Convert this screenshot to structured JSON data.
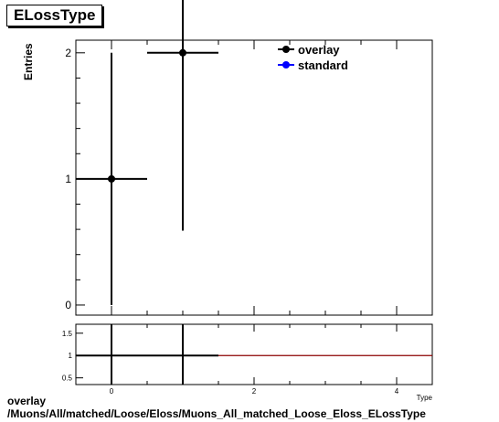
{
  "title": "ELossType",
  "footer": {
    "line1": "overlay",
    "line2": "/Muons/All/matched/Loose/Eloss/Muons_All_matched_Loose_Eloss_ELossType"
  },
  "chart_data": [
    {
      "type": "scatter",
      "title": "ELossType",
      "ylabel": "Entries",
      "xlim": [
        -0.5,
        4.5
      ],
      "ylim": [
        -0.08,
        2.1
      ],
      "yticks": [
        0,
        1,
        2
      ],
      "legend": {
        "placement": "top-right",
        "entries": [
          {
            "name": "overlay",
            "color": "#000000"
          },
          {
            "name": "standard",
            "color": "#0000ff"
          }
        ]
      },
      "series": [
        {
          "name": "overlay",
          "color": "#000000",
          "points": [
            {
              "x": 0,
              "y": 1,
              "xerr": 0.5,
              "yerr_low": 1,
              "yerr_high": 1
            },
            {
              "x": 1,
              "y": 2,
              "xerr": 0.5,
              "yerr_low": 1.41,
              "yerr_high": 1.41
            }
          ]
        },
        {
          "name": "standard",
          "color": "#0000ff",
          "points": []
        }
      ]
    },
    {
      "type": "line",
      "xlim": [
        -0.5,
        4.5
      ],
      "ylim": [
        0.35,
        1.7
      ],
      "yticks": [
        0.5,
        1,
        1.5
      ],
      "ytick_labels": [
        "0.5",
        "1",
        "1.5"
      ],
      "xticks": [
        0,
        2,
        4
      ],
      "xtick_labels": [
        "0",
        "2",
        "4"
      ],
      "reference_line": {
        "y": 1,
        "color": "#8b0000"
      },
      "series": [
        {
          "color": "#000000",
          "points": [
            {
              "x": 0,
              "y": 1,
              "xerr": 0.5,
              "yerr": 1.5
            },
            {
              "x": 1,
              "y": 1,
              "xerr": 0.5,
              "yerr": 1.5
            }
          ]
        }
      ],
      "xlabel_partial": "Type"
    }
  ]
}
